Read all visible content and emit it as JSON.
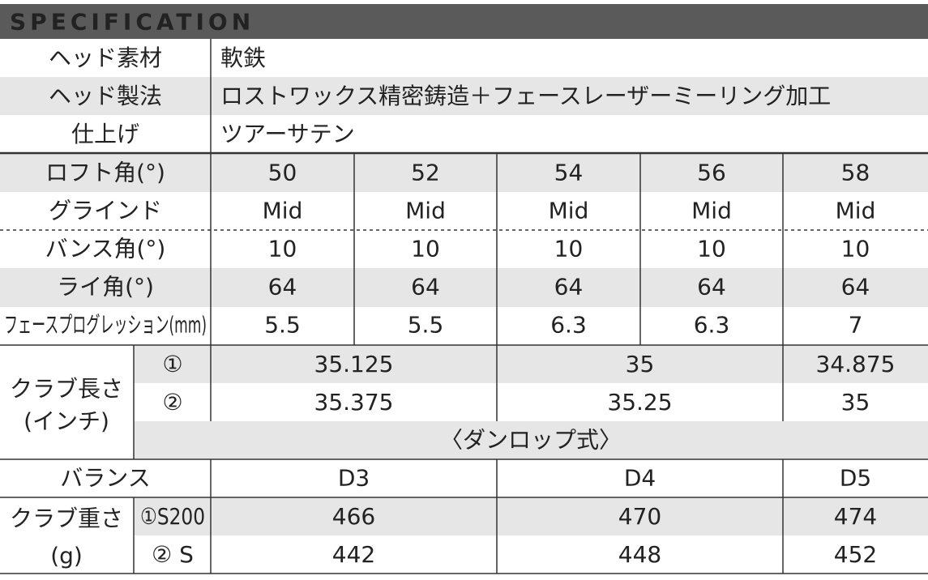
{
  "spec": {
    "title": "SPECIFICATION",
    "rows": [
      [
        "ヘッド素材",
        "軟鉄"
      ],
      [
        "ヘッド製法",
        "ロストワックス精密鋳造＋フェースレーザーミーリング加工"
      ],
      [
        "仕上げ",
        "ツアーサテン"
      ]
    ]
  },
  "models": {
    "rows": [
      {
        "label": "ロフト角(°)",
        "cells": [
          "50",
          "52",
          "54",
          "56",
          "58"
        ]
      },
      {
        "label": "グラインド",
        "cells": [
          "Mid",
          "Mid",
          "Mid",
          "Mid",
          "Mid"
        ]
      },
      {
        "label": "バンス角(°)",
        "cells": [
          "10",
          "10",
          "10",
          "10",
          "10"
        ]
      },
      {
        "label": "ライ角(°)",
        "cells": [
          "64",
          "64",
          "64",
          "64",
          "64"
        ]
      },
      {
        "label": "フェースプログレッション(mm)",
        "cells": [
          "5.5",
          "5.5",
          "6.3",
          "6.3",
          "7"
        ]
      }
    ]
  },
  "length": {
    "lines": [
      "クラブ長さ",
      "(インチ)"
    ],
    "rows": [
      {
        "marker": "①",
        "cells": [
          "35.125",
          "35",
          "34.875"
        ]
      },
      {
        "marker": "②",
        "cells": [
          "35.375",
          "35.25",
          "35"
        ]
      }
    ],
    "note": "〈ダンロップ式〉"
  },
  "balance": {
    "label": "バランス",
    "cells": [
      "D3",
      "D4",
      "D5"
    ]
  },
  "weight": {
    "lines": [
      "クラブ重さ",
      "(g)"
    ],
    "rows": [
      {
        "marker": "①S200",
        "cells": [
          "466",
          "470",
          "474"
        ]
      },
      {
        "marker": "② S",
        "cells": [
          "442",
          "448",
          "452"
        ]
      }
    ]
  }
}
